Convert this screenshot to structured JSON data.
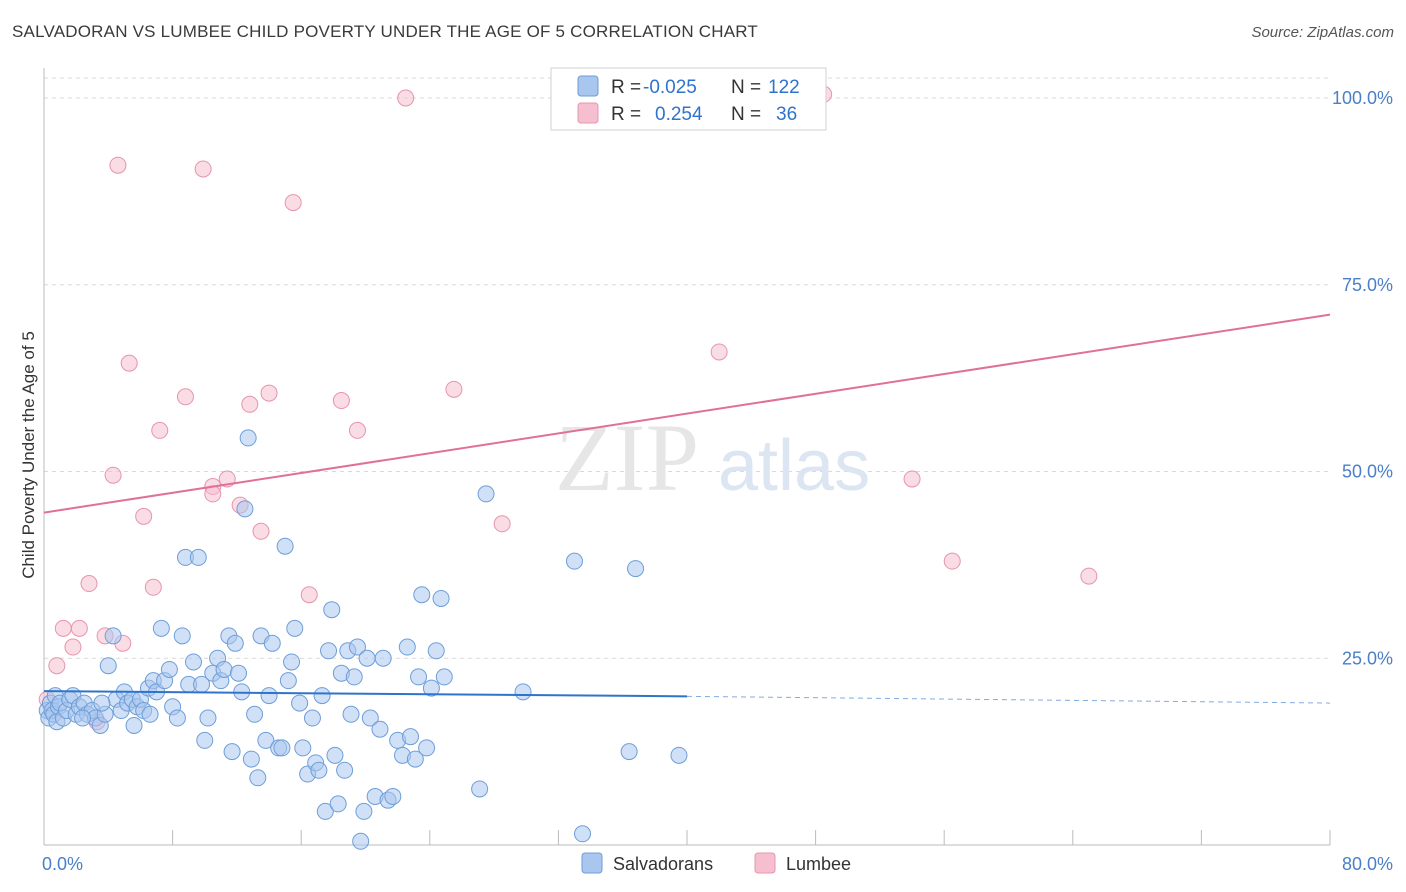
{
  "title": "SALVADORAN VS LUMBEE CHILD POVERTY UNDER THE AGE OF 5 CORRELATION CHART",
  "source": "Source: ZipAtlas.com",
  "watermark": {
    "zip": "ZIP",
    "atlas": "atlas"
  },
  "colors": {
    "blue_fill": "#a9c6ee",
    "blue_stroke": "#6e9ed8",
    "blue_line": "#2f73cc",
    "pink_fill": "#f5bfd0",
    "pink_stroke": "#e694b0",
    "pink_line": "#e0709a",
    "grid": "#d9d9d9",
    "tick_text": "#4a7fc8"
  },
  "legend": {
    "r_label": "R =",
    "n_label": "N =",
    "rows": [
      {
        "r": "-0.025",
        "n": "122"
      },
      {
        "r": "0.254",
        "n": "36"
      }
    ]
  },
  "chart_data": {
    "type": "scatter",
    "title": "SALVADORAN VS LUMBEE CHILD POVERTY UNDER THE AGE OF 5 CORRELATION CHART",
    "xlabel": "",
    "ylabel": "Child Poverty Under the Age of 5",
    "xlim": [
      0,
      80
    ],
    "ylim": [
      0,
      100
    ],
    "x_tick_labels": [
      "0.0%",
      "80.0%"
    ],
    "y_ticks": [
      25,
      50,
      75,
      100
    ],
    "y_tick_labels": [
      "25.0%",
      "50.0%",
      "75.0%",
      "100.0%"
    ],
    "grid": true,
    "legend_position": "top-center",
    "series": [
      {
        "name": "Salvadorans",
        "r": -0.025,
        "n": 122,
        "trend": {
          "x0": 0,
          "y0": 20.6,
          "x1": 40,
          "y1": 19.9,
          "dashed_to_x": 80,
          "dashed_to_y": 19.0
        },
        "points": [
          [
            0.2,
            18.0
          ],
          [
            0.3,
            17.0
          ],
          [
            0.4,
            19.0
          ],
          [
            0.5,
            18.0
          ],
          [
            0.6,
            17.5
          ],
          [
            0.7,
            20.0
          ],
          [
            0.8,
            16.5
          ],
          [
            0.9,
            18.5
          ],
          [
            1.0,
            19.0
          ],
          [
            1.2,
            17.0
          ],
          [
            1.4,
            18.0
          ],
          [
            1.6,
            19.5
          ],
          [
            1.8,
            20.0
          ],
          [
            2.0,
            17.5
          ],
          [
            2.2,
            18.5
          ],
          [
            2.5,
            19.0
          ],
          [
            2.7,
            17.5
          ],
          [
            3.0,
            18.0
          ],
          [
            3.2,
            17.0
          ],
          [
            3.5,
            16.0
          ],
          [
            3.8,
            17.5
          ],
          [
            4.0,
            24.0
          ],
          [
            4.3,
            28.0
          ],
          [
            4.5,
            19.5
          ],
          [
            4.8,
            18.0
          ],
          [
            5.0,
            20.5
          ],
          [
            5.2,
            19.0
          ],
          [
            5.5,
            19.5
          ],
          [
            5.8,
            18.5
          ],
          [
            6.0,
            19.5
          ],
          [
            6.2,
            18.0
          ],
          [
            6.5,
            21.0
          ],
          [
            6.8,
            22.0
          ],
          [
            7.0,
            20.5
          ],
          [
            7.3,
            29.0
          ],
          [
            7.5,
            22.0
          ],
          [
            7.8,
            23.5
          ],
          [
            8.0,
            18.5
          ],
          [
            8.3,
            17.0
          ],
          [
            8.6,
            28.0
          ],
          [
            8.8,
            38.5
          ],
          [
            9.0,
            21.5
          ],
          [
            9.3,
            24.5
          ],
          [
            9.6,
            38.5
          ],
          [
            9.8,
            21.5
          ],
          [
            10.0,
            14.0
          ],
          [
            10.2,
            17.0
          ],
          [
            10.5,
            23.0
          ],
          [
            10.8,
            25.0
          ],
          [
            11.0,
            22.0
          ],
          [
            11.2,
            23.5
          ],
          [
            11.5,
            28.0
          ],
          [
            11.7,
            12.5
          ],
          [
            11.9,
            27.0
          ],
          [
            12.1,
            23.0
          ],
          [
            12.3,
            20.5
          ],
          [
            12.5,
            45.0
          ],
          [
            12.7,
            54.5
          ],
          [
            12.9,
            11.5
          ],
          [
            13.1,
            17.5
          ],
          [
            13.3,
            9.0
          ],
          [
            13.5,
            28.0
          ],
          [
            13.8,
            14.0
          ],
          [
            14.0,
            20.0
          ],
          [
            14.2,
            27.0
          ],
          [
            14.6,
            13.0
          ],
          [
            14.8,
            13.0
          ],
          [
            15.0,
            40.0
          ],
          [
            15.2,
            22.0
          ],
          [
            15.4,
            24.5
          ],
          [
            15.6,
            29.0
          ],
          [
            15.9,
            19.0
          ],
          [
            16.1,
            13.0
          ],
          [
            16.4,
            9.5
          ],
          [
            16.7,
            17.0
          ],
          [
            16.9,
            11.0
          ],
          [
            17.1,
            10.0
          ],
          [
            17.3,
            20.0
          ],
          [
            17.5,
            4.5
          ],
          [
            17.7,
            26.0
          ],
          [
            17.9,
            31.5
          ],
          [
            18.1,
            12.0
          ],
          [
            18.3,
            5.5
          ],
          [
            18.5,
            23.0
          ],
          [
            18.7,
            10.0
          ],
          [
            18.9,
            26.0
          ],
          [
            19.1,
            17.5
          ],
          [
            19.3,
            22.5
          ],
          [
            19.5,
            26.5
          ],
          [
            19.7,
            0.5
          ],
          [
            19.9,
            4.5
          ],
          [
            20.1,
            25.0
          ],
          [
            20.3,
            17.0
          ],
          [
            20.6,
            6.5
          ],
          [
            20.9,
            15.5
          ],
          [
            21.1,
            25.0
          ],
          [
            21.4,
            6.0
          ],
          [
            21.7,
            6.5
          ],
          [
            22.0,
            14.0
          ],
          [
            22.3,
            12.0
          ],
          [
            22.6,
            26.5
          ],
          [
            22.8,
            14.5
          ],
          [
            23.1,
            11.5
          ],
          [
            23.3,
            22.5
          ],
          [
            23.5,
            33.5
          ],
          [
            23.8,
            13.0
          ],
          [
            24.1,
            21.0
          ],
          [
            24.4,
            26.0
          ],
          [
            24.7,
            33.0
          ],
          [
            24.9,
            22.5
          ],
          [
            27.1,
            7.5
          ],
          [
            27.5,
            47.0
          ],
          [
            29.8,
            20.5
          ],
          [
            33.0,
            38.0
          ],
          [
            33.5,
            1.5
          ],
          [
            36.4,
            12.5
          ],
          [
            36.8,
            37.0
          ],
          [
            39.5,
            12.0
          ],
          [
            2.4,
            17.0
          ],
          [
            3.6,
            19.0
          ],
          [
            5.6,
            16.0
          ],
          [
            6.6,
            17.5
          ]
        ]
      },
      {
        "name": "Lumbee",
        "r": 0.254,
        "n": 36,
        "trend": {
          "x0": 0,
          "y0": 44.5,
          "x1": 80,
          "y1": 71.0
        },
        "points": [
          [
            0.2,
            19.5
          ],
          [
            0.8,
            24.0
          ],
          [
            1.2,
            29.0
          ],
          [
            1.8,
            26.5
          ],
          [
            2.2,
            29.0
          ],
          [
            2.8,
            35.0
          ],
          [
            3.3,
            16.5
          ],
          [
            3.8,
            28.0
          ],
          [
            4.3,
            49.5
          ],
          [
            4.6,
            91.0
          ],
          [
            4.9,
            27.0
          ],
          [
            5.3,
            64.5
          ],
          [
            6.2,
            44.0
          ],
          [
            6.8,
            34.5
          ],
          [
            7.2,
            55.5
          ],
          [
            8.8,
            60.0
          ],
          [
            9.9,
            90.5
          ],
          [
            10.5,
            48.0
          ],
          [
            10.5,
            47.0
          ],
          [
            11.4,
            49.0
          ],
          [
            12.2,
            45.5
          ],
          [
            12.8,
            59.0
          ],
          [
            13.5,
            42.0
          ],
          [
            14.0,
            60.5
          ],
          [
            15.5,
            86.0
          ],
          [
            16.5,
            33.5
          ],
          [
            18.5,
            59.5
          ],
          [
            19.5,
            55.5
          ],
          [
            22.5,
            100.0
          ],
          [
            25.5,
            61.0
          ],
          [
            28.5,
            43.0
          ],
          [
            42.0,
            66.0
          ],
          [
            54.0,
            49.0
          ],
          [
            56.5,
            38.0
          ],
          [
            65.0,
            36.0
          ],
          [
            48.5,
            100.5
          ]
        ]
      }
    ]
  },
  "bottom_legend": {
    "items": [
      {
        "label": "Salvadorans"
      },
      {
        "label": "Lumbee"
      }
    ]
  }
}
